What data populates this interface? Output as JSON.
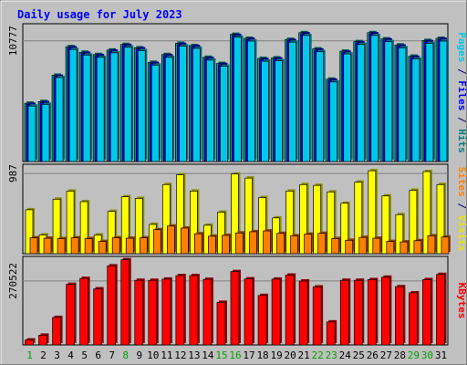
{
  "chart_data": {
    "type": "bar",
    "title": "Daily usage for July 2023",
    "days": [
      "1",
      "2",
      "3",
      "4",
      "5",
      "6",
      "7",
      "8",
      "9",
      "10",
      "11",
      "12",
      "13",
      "14",
      "15",
      "16",
      "17",
      "18",
      "19",
      "20",
      "21",
      "22",
      "23",
      "24",
      "25",
      "26",
      "27",
      "28",
      "29",
      "30",
      "31"
    ],
    "weekend_days": [
      1,
      8,
      15,
      16,
      22,
      23,
      29,
      30
    ],
    "panels": [
      {
        "name": "hits-files-pages",
        "y_tick_label": "10777",
        "y_tick_value": 10777,
        "ylim": [
          0,
          12300
        ],
        "side_label": [
          {
            "text": "Pages",
            "color": "#00c8e8"
          },
          {
            "text": " / ",
            "color": "#000080"
          },
          {
            "text": "Files",
            "color": "#0000ff"
          },
          {
            "text": " / ",
            "color": "#000080"
          },
          {
            "text": "Hits",
            "color": "#008080"
          }
        ],
        "series": [
          {
            "name": "Hits",
            "color": "#00a090",
            "values": [
              5200,
              5350,
              7700,
              10250,
              9750,
              9550,
              9950,
              10450,
              10150,
              8850,
              9550,
              10550,
              10350,
              9300,
              8750,
              11350,
              11000,
              9200,
              9250,
              10900,
              11500,
              10050,
              7350,
              9850,
              10700,
              11500,
              10950,
              10400,
              9400,
              10800,
              11000
            ]
          },
          {
            "name": "Files",
            "color": "#0000ff",
            "values": [
              5100,
              5250,
              7600,
              10150,
              9650,
              9450,
              9850,
              10350,
              10050,
              8750,
              9450,
              10450,
              10250,
              9200,
              8650,
              11250,
              10900,
              9100,
              9150,
              10800,
              11400,
              9950,
              7250,
              9750,
              10600,
              11400,
              10850,
              10300,
              9300,
              10700,
              10900
            ]
          },
          {
            "name": "Pages",
            "color": "#00c8e8",
            "values": [
              4950,
              5100,
              7500,
              10000,
              9500,
              9300,
              9700,
              10200,
              9900,
              8600,
              9300,
              10300,
              10100,
              9050,
              8500,
              11100,
              10750,
              8950,
              9000,
              10650,
              11250,
              9800,
              7100,
              9600,
              10450,
              11250,
              10700,
              10150,
              9150,
              10550,
              10750
            ]
          }
        ]
      },
      {
        "name": "visits-sites",
        "y_tick_label": "987",
        "y_tick_value": 987,
        "ylim": [
          0,
          1100
        ],
        "side_label": [
          {
            "text": "Sites",
            "color": "#ff8000"
          },
          {
            "text": " / ",
            "color": "#000080"
          },
          {
            "text": "Visits",
            "color": "#e8e800"
          }
        ],
        "series": [
          {
            "name": "Visits",
            "color": "#ffff00",
            "values": [
              540,
              230,
              670,
              770,
              640,
              230,
              520,
              700,
              680,
              360,
              850,
              970,
              770,
              350,
              510,
              980,
              930,
              690,
              440,
              770,
              850,
              840,
              760,
              620,
              880,
              1020,
              710,
              480,
              780,
              1010,
              850
            ]
          },
          {
            "name": "Sites",
            "color": "#ff8000",
            "values": [
              195,
              190,
              185,
              195,
              185,
              150,
              195,
              190,
              195,
              295,
              340,
              315,
              245,
              215,
              225,
              255,
              270,
              280,
              250,
              220,
              240,
              250,
              185,
              165,
              200,
              190,
              150,
              145,
              160,
              220,
              205
            ]
          }
        ]
      },
      {
        "name": "kbytes",
        "y_tick_label": "270522",
        "y_tick_value": 270522,
        "ylim": [
          0,
          374000
        ],
        "side_label": [
          {
            "text": "KBytes",
            "color": "#ff0000"
          }
        ],
        "series": [
          {
            "name": "KBytes",
            "color": "#ff0000",
            "values": [
              21000,
              41000,
              116000,
              256000,
              281000,
              237000,
              334000,
              360000,
              273000,
              273000,
              278000,
              293000,
              293000,
              277000,
              180000,
              310000,
              279000,
              209000,
              278000,
              295000,
              270000,
              245000,
              97000,
              273000,
              273000,
              276000,
              286000,
              246000,
              220000,
              276000,
              298000
            ]
          }
        ]
      }
    ]
  }
}
